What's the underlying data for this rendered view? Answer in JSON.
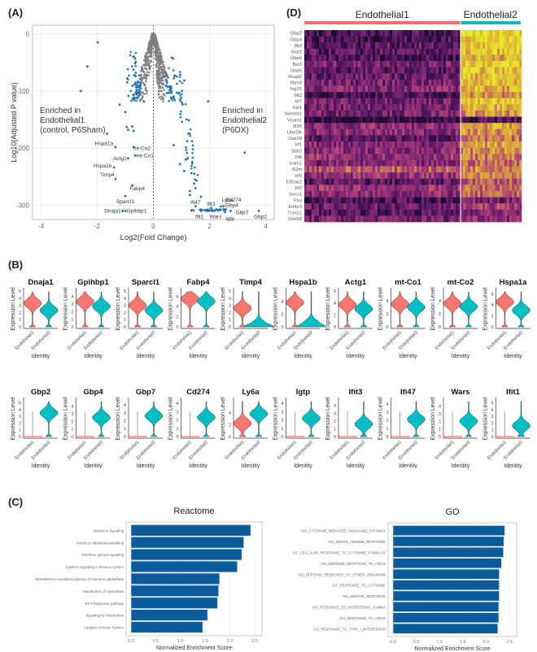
{
  "panels": {
    "a": "(A)",
    "b": "(B)",
    "c": "(C)",
    "d": "(D)"
  },
  "chart_data": [
    {
      "id": "volcano",
      "type": "scatter",
      "title": "",
      "xlabel": "Log2(Fold Change)",
      "ylabel": "Log10(Adjusted P value)",
      "xlim": [
        -4.3,
        4.3
      ],
      "ylim": [
        -325,
        15
      ],
      "xticks": [
        -4,
        -2,
        0,
        2,
        4
      ],
      "yticks": [
        0,
        -100,
        -200,
        -300
      ],
      "grid": true,
      "vline_x": 0,
      "annotations": [
        {
          "text": "Enriched in\nEndothelial1\n(control, P6Sham)",
          "position": "left"
        },
        {
          "text": "Enriched in\nEndothelial2\n(P6DX)",
          "position": "right"
        }
      ],
      "colors": {
        "significant": "#1f6fb2",
        "nonsignificant": "#808080"
      },
      "labeled_points": [
        {
          "label": "Hspa1a",
          "x": -1.35,
          "y": -198
        },
        {
          "label": "mt-Co2",
          "x": -0.7,
          "y": -198
        },
        {
          "label": "mt-Co1",
          "x": -0.65,
          "y": -213
        },
        {
          "label": "Actg1",
          "x": -0.9,
          "y": -218
        },
        {
          "label": "Hspa1b",
          "x": -1.4,
          "y": -234
        },
        {
          "label": "Timp4",
          "x": -1.35,
          "y": -254
        },
        {
          "label": "Fabp4",
          "x": -0.75,
          "y": -265
        },
        {
          "label": "Sparcl1",
          "x": -1.0,
          "y": -284
        },
        {
          "label": "Dnaja1",
          "x": -1.1,
          "y": -310
        },
        {
          "label": "Gpihbp1",
          "x": -1.0,
          "y": -310
        },
        {
          "label": "Ly6a",
          "x": 2.4,
          "y": -302
        },
        {
          "label": "Cd274",
          "x": 2.5,
          "y": -302
        },
        {
          "label": "Ifi47",
          "x": 1.5,
          "y": -302
        },
        {
          "label": "Ifit3",
          "x": 2.05,
          "y": -305
        },
        {
          "label": "Gbp4",
          "x": 2.5,
          "y": -307
        },
        {
          "label": "Ifit1",
          "x": 1.7,
          "y": -310
        },
        {
          "label": "Wars",
          "x": 2.1,
          "y": -310
        },
        {
          "label": "Igtp",
          "x": 2.55,
          "y": -312
        },
        {
          "label": "Gbp7",
          "x": 2.75,
          "y": -310
        },
        {
          "label": "Gbp2",
          "x": 3.75,
          "y": -310
        }
      ],
      "outlier_points": [
        {
          "x": -1.98,
          "y": -15,
          "sig": true
        },
        {
          "x": -2.35,
          "y": -57,
          "sig": true
        },
        {
          "x": -2.58,
          "y": -100,
          "sig": true
        },
        {
          "x": -1.2,
          "y": -124,
          "sig": true
        },
        {
          "x": -1.0,
          "y": -137,
          "sig": true
        },
        {
          "x": -1.65,
          "y": -175,
          "sig": true
        },
        {
          "x": -0.95,
          "y": -163,
          "sig": true
        },
        {
          "x": -0.75,
          "y": -162,
          "sig": true
        },
        {
          "x": -0.7,
          "y": -170,
          "sig": true
        },
        {
          "x": -0.9,
          "y": -168,
          "sig": true
        },
        {
          "x": 1.95,
          "y": -118,
          "sig": true
        },
        {
          "x": 3.25,
          "y": -208,
          "sig": true
        },
        {
          "x": 1.1,
          "y": -82,
          "sig": true
        },
        {
          "x": 1.25,
          "y": -175,
          "sig": true
        },
        {
          "x": 1.2,
          "y": -188,
          "sig": true
        },
        {
          "x": 1.15,
          "y": -220,
          "sig": true
        },
        {
          "x": 0.95,
          "y": -228,
          "sig": true
        },
        {
          "x": 1.1,
          "y": -240,
          "sig": true
        },
        {
          "x": 1.3,
          "y": -275,
          "sig": true
        },
        {
          "x": 1.45,
          "y": -245,
          "sig": true
        },
        {
          "x": 1.45,
          "y": -262,
          "sig": true
        },
        {
          "x": 1.5,
          "y": -270,
          "sig": true
        },
        {
          "x": 1.7,
          "y": -285,
          "sig": true
        },
        {
          "x": 1.3,
          "y": -282,
          "sig": true
        },
        {
          "x": 0.72,
          "y": -195,
          "sig": true
        },
        {
          "x": -0.6,
          "y": -117,
          "sig": false
        },
        {
          "x": -0.4,
          "y": -60,
          "sig": false
        },
        {
          "x": 0.55,
          "y": -60,
          "sig": false
        }
      ]
    },
    {
      "id": "heatmap",
      "type": "heatmap",
      "groups": [
        {
          "name": "Endothelial1",
          "color": "#f07167",
          "fraction": 0.72
        },
        {
          "name": "Endothelial2",
          "color": "#13b5b1",
          "fraction": 0.28
        }
      ],
      "genes": [
        "Gbp2",
        "Gbp4",
        "Ifit3",
        "Stat1",
        "Gbp6",
        "Bst2",
        "Gbp5",
        "Rsad2",
        "Ifitm3",
        "Isg15",
        "Ifit2",
        "Irf7",
        "Xaf1",
        "Samhd1",
        "Vcam1",
        "Ifi35",
        "Ube2l6",
        "Usp18",
        "Irf1",
        "Stat2",
        "Irf8",
        "Icam1",
        "B2m",
        "Irf9",
        "Eif2ak2",
        "Irf2",
        "Socs1",
        "Pml",
        "Eif4e3",
        "Trim21",
        "Ddx58"
      ],
      "group1_level": [
        0.15,
        0.15,
        0.2,
        0.2,
        0.15,
        0.3,
        0.2,
        0.25,
        0.3,
        0.35,
        0.15,
        0.3,
        0.3,
        0.3,
        0.05,
        0.35,
        0.35,
        0.2,
        0.35,
        0.35,
        0.4,
        0.3,
        0.55,
        0.4,
        0.2,
        0.4,
        0.35,
        0.15,
        0.25,
        0.2,
        0.3
      ],
      "group2_level": [
        0.95,
        0.9,
        0.85,
        0.85,
        0.8,
        0.9,
        0.85,
        0.85,
        0.85,
        0.8,
        0.7,
        0.85,
        0.8,
        0.7,
        0.15,
        0.75,
        0.7,
        0.6,
        0.75,
        0.7,
        0.65,
        0.6,
        0.7,
        0.65,
        0.55,
        0.6,
        0.55,
        0.3,
        0.45,
        0.35,
        0.4
      ],
      "colorscale": [
        "#1a0a2e",
        "#6a1d6e",
        "#b3407a",
        "#d9a43a",
        "#e8e82a"
      ]
    },
    {
      "id": "violins",
      "type": "violin",
      "ylabel": "Expression Level",
      "xlabel": "Identity",
      "categories": [
        "Endothelial1",
        "Endothelial2"
      ],
      "colors": [
        "#f8766d",
        "#00bfc4"
      ],
      "rows": [
        [
          {
            "gene": "Dnaja1",
            "yticks": [
              0,
              1,
              2,
              3,
              4,
              5
            ],
            "ymax": 5,
            "medians": [
              3.3,
              2.3
            ]
          },
          {
            "gene": "Gpihbp1",
            "yticks": [
              0,
              1,
              2,
              3,
              4
            ],
            "ymax": 4.7,
            "medians": [
              3.3,
              2.7
            ]
          },
          {
            "gene": "Sparcl1",
            "yticks": [
              0,
              1,
              2,
              3,
              4,
              5
            ],
            "ymax": 5,
            "medians": [
              3.0,
              2.3
            ]
          },
          {
            "gene": "Fabp4",
            "yticks": [
              0,
              2,
              4,
              6
            ],
            "ymax": 7,
            "medians": [
              5.5,
              5.0
            ]
          },
          {
            "gene": "Timp4",
            "yticks": [
              0,
              1,
              2,
              3,
              4,
              5
            ],
            "ymax": 5,
            "medians": [
              2.6,
              0.2
            ]
          },
          {
            "gene": "Hspa1b",
            "yticks": [
              0,
              2,
              4
            ],
            "ymax": 5.6,
            "medians": [
              3.8,
              0.4
            ]
          },
          {
            "gene": "Actg1",
            "yticks": [
              0,
              2,
              4,
              6
            ],
            "ymax": 6,
            "medians": [
              3.7,
              3.0
            ]
          },
          {
            "gene": "mt-Co1",
            "yticks": [
              0,
              2,
              4
            ],
            "ymax": 5.5,
            "medians": [
              3.5,
              3.0
            ]
          },
          {
            "gene": "mt-Co2",
            "yticks": [
              0,
              2,
              4
            ],
            "ymax": 5.5,
            "medians": [
              3.6,
              3.1
            ]
          },
          {
            "gene": "Hspa1a",
            "yticks": [
              0,
              2,
              4,
              6
            ],
            "ymax": 6.5,
            "medians": [
              4.5,
              3.0
            ]
          }
        ],
        [
          {
            "gene": "Gbp2",
            "yticks": [
              0,
              1,
              2,
              3,
              4,
              5
            ],
            "ymax": 5.3,
            "medians": [
              0.0,
              3.5
            ]
          },
          {
            "gene": "Gbp4",
            "yticks": [
              0,
              1,
              2,
              3,
              4
            ],
            "ymax": 4.7,
            "medians": [
              0.0,
              2.5
            ]
          },
          {
            "gene": "Gbp7",
            "yticks": [
              0,
              1,
              2,
              3,
              4
            ],
            "ymax": 4.5,
            "medians": [
              0.0,
              2.6
            ]
          },
          {
            "gene": "Cd274",
            "yticks": [
              0,
              1,
              2,
              3,
              4
            ],
            "ymax": 4.3,
            "medians": [
              0.0,
              2.3
            ]
          },
          {
            "gene": "Ly6a",
            "yticks": [
              0,
              2,
              4
            ],
            "ymax": 6,
            "medians": [
              2.2,
              3.8
            ]
          },
          {
            "gene": "Igtp",
            "yticks": [
              0,
              1,
              2,
              3,
              4
            ],
            "ymax": 4.3,
            "medians": [
              0.0,
              2.2
            ]
          },
          {
            "gene": "Ifit3",
            "yticks": [
              0,
              1,
              2,
              3,
              4
            ],
            "ymax": 4.6,
            "medians": [
              0.0,
              1.6
            ]
          },
          {
            "gene": "Ifi47",
            "yticks": [
              0,
              1,
              2,
              3,
              4
            ],
            "ymax": 4.4,
            "medians": [
              0.0,
              2.1
            ]
          },
          {
            "gene": "Wars",
            "yticks": [
              0,
              1,
              2,
              3,
              4
            ],
            "ymax": 4.7,
            "medians": [
              0.0,
              2.0
            ]
          },
          {
            "gene": "Ifit1",
            "yticks": [
              0,
              1,
              2,
              3,
              4,
              5
            ],
            "ymax": 5.3,
            "medians": [
              0.0,
              1.6
            ]
          }
        ]
      ]
    },
    {
      "id": "reactome",
      "type": "bar",
      "orientation": "horizontal",
      "title": "Reactome",
      "xlabel": "Normalized Enrichment Score",
      "xlim": [
        0,
        2.55
      ],
      "xticks": [
        "0.0",
        "0.5",
        "1.0",
        "1.5",
        "2.0",
        "2.5"
      ],
      "color": "#0b5a9c",
      "categories": [
        "Interferon Signaling",
        "Interferon alpha/beta signaling",
        "Interferon gamma signaling",
        "Cytokine Signaling in Immune system",
        "DDX58/IFIH1-mediated induction of interferon-alpha/beta",
        "Metabolism of nucleotides",
        "ER-Phagosome pathway",
        "Signaling by Interleukins",
        "Adaptive Immune System"
      ],
      "values": [
        2.42,
        2.28,
        2.24,
        2.15,
        1.79,
        1.77,
        1.75,
        1.55,
        1.45
      ]
    },
    {
      "id": "go",
      "type": "bar",
      "orientation": "horizontal",
      "title": "GO",
      "xlabel": "Normalized Enrichment Score",
      "xlim": [
        0,
        2.55
      ],
      "xticks": [
        "0.0",
        "0.5",
        "1.0",
        "1.5",
        "2.0",
        "2.5"
      ],
      "color": "#0b5a9c",
      "categories": [
        "GO_CYTOKINE_MEDIATED_SIGNALING_PATHWAY",
        "GO_INNATE_IMMUNE_RESPONSE",
        "GO_CELLULAR_RESPONSE_TO_CYTOKINE_STIMULUS",
        "GO_DEFENSE_RESPONSE_TO_VIRUS",
        "GO_DEFENSE_RESPONSE_TO_OTHER_ORGANISM",
        "GO_RESPONSE_TO_CYTOKINE",
        "GO_IMMUNE_RESPONSE",
        "GO_RESPONSE_TO_INTERFERON_GAMMA",
        "GO_RESPONSE_TO_VIRUS",
        "GO_RESPONSE_TO_TYPE_I_INTERFERON"
      ],
      "values": [
        2.4,
        2.38,
        2.37,
        2.33,
        2.28,
        2.28,
        2.28,
        2.27,
        2.27,
        2.25
      ]
    }
  ]
}
